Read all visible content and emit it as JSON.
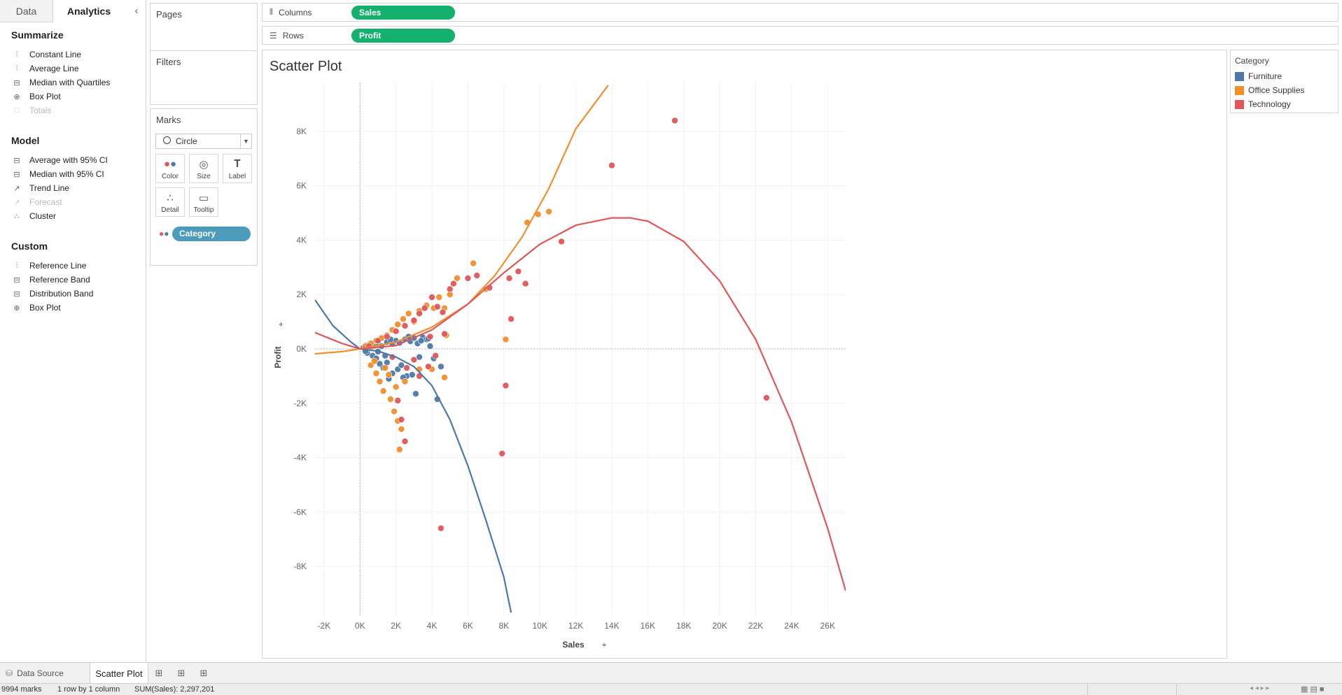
{
  "left_pane": {
    "tabs": [
      {
        "label": "Data",
        "active": false
      },
      {
        "label": "Analytics",
        "active": true
      }
    ],
    "collapse_icon": "chevron-left-icon",
    "sections": [
      {
        "title": "Summarize",
        "items": [
          {
            "label": "Constant Line",
            "icon": "constant-line-icon",
            "enabled": true
          },
          {
            "label": "Average Line",
            "icon": "average-line-icon",
            "enabled": true
          },
          {
            "label": "Median with Quartiles",
            "icon": "median-quartiles-icon",
            "enabled": true
          },
          {
            "label": "Box Plot",
            "icon": "box-plot-icon",
            "enabled": true
          },
          {
            "label": "Totals",
            "icon": "totals-icon",
            "enabled": false
          }
        ]
      },
      {
        "title": "Model",
        "items": [
          {
            "label": "Average with 95% CI",
            "icon": "average-ci-icon",
            "enabled": true
          },
          {
            "label": "Median with 95% CI",
            "icon": "median-ci-icon",
            "enabled": true
          },
          {
            "label": "Trend Line",
            "icon": "trend-line-icon",
            "enabled": true
          },
          {
            "label": "Forecast",
            "icon": "forecast-icon",
            "enabled": false
          },
          {
            "label": "Cluster",
            "icon": "cluster-icon",
            "enabled": true
          }
        ]
      },
      {
        "title": "Custom",
        "items": [
          {
            "label": "Reference Line",
            "icon": "reference-line-icon",
            "enabled": true
          },
          {
            "label": "Reference Band",
            "icon": "reference-band-icon",
            "enabled": true
          },
          {
            "label": "Distribution Band",
            "icon": "distribution-band-icon",
            "enabled": true
          },
          {
            "label": "Box Plot",
            "icon": "box-plot-icon",
            "enabled": true
          }
        ]
      }
    ]
  },
  "cards": {
    "pages_title": "Pages",
    "filters_title": "Filters",
    "marks": {
      "title": "Marks",
      "mark_type": "Circle",
      "buttons": [
        {
          "label": "Color",
          "icon": "color-icon"
        },
        {
          "label": "Size",
          "icon": "size-icon"
        },
        {
          "label": "Label",
          "icon": "label-icon"
        },
        {
          "label": "Detail",
          "icon": "detail-icon"
        },
        {
          "label": "Tooltip",
          "icon": "tooltip-icon"
        }
      ],
      "color_field": "Category"
    }
  },
  "shelves": {
    "columns": {
      "label": "Columns",
      "pill": "Sales"
    },
    "rows": {
      "label": "Rows",
      "pill": "Profit"
    }
  },
  "sheet": {
    "title": "Scatter Plot"
  },
  "legend": {
    "title": "Category",
    "items": [
      {
        "label": "Furniture",
        "color": "#4e79a7"
      },
      {
        "label": "Office Supplies",
        "color": "#f28e2b"
      },
      {
        "label": "Technology",
        "color": "#e15759"
      }
    ]
  },
  "tabs_bar": {
    "data_source": "Data Source",
    "sheet": "Scatter Plot",
    "new_tab_icons": [
      "new-worksheet-icon",
      "new-dashboard-icon",
      "new-story-icon"
    ]
  },
  "status": {
    "marks": "9994 marks",
    "layout": "1 row by 1 column",
    "sum": "SUM(Sales): 2,297,201"
  },
  "chart_data": {
    "type": "scatter",
    "title": "Scatter Plot",
    "xlabel": "Sales",
    "ylabel": "Profit",
    "xlim": [
      -2500,
      27000
    ],
    "ylim": [
      -9800,
      9800
    ],
    "x_ticks": [
      -2000,
      0,
      2000,
      4000,
      6000,
      8000,
      10000,
      12000,
      14000,
      16000,
      18000,
      20000,
      22000,
      24000,
      26000
    ],
    "x_tick_labels": [
      "-2K",
      "0K",
      "2K",
      "4K",
      "6K",
      "8K",
      "10K",
      "12K",
      "14K",
      "16K",
      "18K",
      "20K",
      "22K",
      "24K",
      "26K"
    ],
    "y_ticks": [
      -8000,
      -6000,
      -4000,
      -2000,
      0,
      2000,
      4000,
      6000,
      8000
    ],
    "y_tick_labels": [
      "-8K",
      "-6K",
      "-4K",
      "-2K",
      "0K",
      "2K",
      "4K",
      "6K",
      "8K"
    ],
    "grid": true,
    "legend": "right",
    "series": [
      {
        "name": "Furniture",
        "color": "#4e79a7",
        "points": [
          [
            200,
            50
          ],
          [
            400,
            120
          ],
          [
            600,
            80
          ],
          [
            800,
            150
          ],
          [
            1000,
            200
          ],
          [
            1200,
            100
          ],
          [
            1500,
            250
          ],
          [
            1800,
            180
          ],
          [
            2000,
            300
          ],
          [
            2200,
            220
          ],
          [
            2500,
            350
          ],
          [
            2800,
            280
          ],
          [
            3000,
            400
          ],
          [
            3200,
            200
          ],
          [
            3500,
            420
          ],
          [
            400,
            -150
          ],
          [
            700,
            -250
          ],
          [
            900,
            -350
          ],
          [
            1100,
            -550
          ],
          [
            1300,
            -700
          ],
          [
            1500,
            -500
          ],
          [
            1800,
            -900
          ],
          [
            2100,
            -750
          ],
          [
            2300,
            -600
          ],
          [
            2600,
            -1000
          ],
          [
            2900,
            -950
          ],
          [
            3100,
            -1650
          ],
          [
            3300,
            -300
          ],
          [
            3700,
            350
          ],
          [
            3900,
            100
          ],
          [
            4100,
            -350
          ],
          [
            4300,
            -1850
          ],
          [
            4500,
            -650
          ],
          [
            1600,
            -1100
          ],
          [
            2400,
            -1050
          ],
          [
            300,
            -80
          ],
          [
            500,
            60
          ],
          [
            1000,
            -100
          ],
          [
            1400,
            -250
          ],
          [
            1700,
            350
          ],
          [
            2700,
            450
          ],
          [
            3400,
            300
          ],
          [
            3800,
            380
          ]
        ],
        "trend": [
          [
            -2500,
            1800
          ],
          [
            -1500,
            850
          ],
          [
            -500,
            250
          ],
          [
            0,
            0
          ],
          [
            1000,
            -80
          ],
          [
            2000,
            -300
          ],
          [
            3000,
            -650
          ],
          [
            4000,
            -1350
          ],
          [
            5000,
            -2600
          ],
          [
            6000,
            -4300
          ],
          [
            7000,
            -6300
          ],
          [
            8000,
            -8400
          ],
          [
            8400,
            -9700
          ]
        ]
      },
      {
        "name": "Office Supplies",
        "color": "#f28e2b",
        "points": [
          [
            300,
            100
          ],
          [
            600,
            200
          ],
          [
            900,
            300
          ],
          [
            1200,
            400
          ],
          [
            1500,
            500
          ],
          [
            1800,
            700
          ],
          [
            2100,
            900
          ],
          [
            2400,
            1100
          ],
          [
            2700,
            1300
          ],
          [
            3000,
            1000
          ],
          [
            3300,
            1400
          ],
          [
            3700,
            1600
          ],
          [
            4100,
            1500
          ],
          [
            4400,
            1900
          ],
          [
            4700,
            1500
          ],
          [
            5000,
            2000
          ],
          [
            5400,
            2600
          ],
          [
            6300,
            3150
          ],
          [
            7000,
            2200
          ],
          [
            9300,
            4650
          ],
          [
            9900,
            4950
          ],
          [
            10500,
            5050
          ],
          [
            4800,
            500
          ],
          [
            8100,
            350
          ],
          [
            4000,
            -750
          ],
          [
            4700,
            -1050
          ],
          [
            3300,
            -750
          ],
          [
            600,
            -600
          ],
          [
            900,
            -900
          ],
          [
            1100,
            -1200
          ],
          [
            1300,
            -1550
          ],
          [
            1700,
            -1850
          ],
          [
            1900,
            -2300
          ],
          [
            2100,
            -2650
          ],
          [
            2300,
            -2950
          ],
          [
            2200,
            -3700
          ],
          [
            2000,
            -1400
          ],
          [
            1600,
            -950
          ],
          [
            800,
            -450
          ],
          [
            1400,
            -700
          ],
          [
            2500,
            -1200
          ]
        ],
        "trend": [
          [
            -2500,
            -180
          ],
          [
            -1000,
            -100
          ],
          [
            0,
            0
          ],
          [
            2000,
            250
          ],
          [
            4000,
            800
          ],
          [
            6000,
            1650
          ],
          [
            7500,
            2700
          ],
          [
            9000,
            4100
          ],
          [
            10500,
            5900
          ],
          [
            12000,
            8100
          ],
          [
            13800,
            9700
          ]
        ]
      },
      {
        "name": "Technology",
        "color": "#e15759",
        "points": [
          [
            500,
            100
          ],
          [
            1000,
            300
          ],
          [
            1500,
            450
          ],
          [
            2000,
            650
          ],
          [
            2500,
            850
          ],
          [
            3000,
            1050
          ],
          [
            3300,
            1300
          ],
          [
            3600,
            1500
          ],
          [
            4000,
            1900
          ],
          [
            4300,
            1550
          ],
          [
            4600,
            1350
          ],
          [
            5000,
            2200
          ],
          [
            5200,
            2400
          ],
          [
            6000,
            2600
          ],
          [
            6500,
            2700
          ],
          [
            7200,
            2250
          ],
          [
            8300,
            2600
          ],
          [
            8800,
            2850
          ],
          [
            9200,
            2400
          ],
          [
            8400,
            1100
          ],
          [
            11200,
            3950
          ],
          [
            14000,
            6750
          ],
          [
            17500,
            8400
          ],
          [
            22600,
            -1800
          ],
          [
            8100,
            -1350
          ],
          [
            7900,
            -3850
          ],
          [
            4500,
            -6600
          ],
          [
            2500,
            -3400
          ],
          [
            2300,
            -2600
          ],
          [
            2100,
            -1900
          ],
          [
            3300,
            -1000
          ],
          [
            3800,
            -650
          ],
          [
            4200,
            -250
          ],
          [
            4700,
            550
          ],
          [
            3900,
            450
          ],
          [
            3000,
            -400
          ],
          [
            2600,
            -700
          ],
          [
            1800,
            -300
          ]
        ],
        "trend": [
          [
            -2500,
            600
          ],
          [
            -1000,
            200
          ],
          [
            0,
            0
          ],
          [
            2000,
            120
          ],
          [
            4000,
            700
          ],
          [
            6000,
            1650
          ],
          [
            8000,
            2800
          ],
          [
            10000,
            3850
          ],
          [
            12000,
            4550
          ],
          [
            14000,
            4820
          ],
          [
            15000,
            4820
          ],
          [
            16000,
            4700
          ],
          [
            18000,
            3950
          ],
          [
            20000,
            2500
          ],
          [
            22000,
            350
          ],
          [
            24000,
            -2700
          ],
          [
            26000,
            -6600
          ],
          [
            27000,
            -8900
          ]
        ]
      }
    ]
  }
}
